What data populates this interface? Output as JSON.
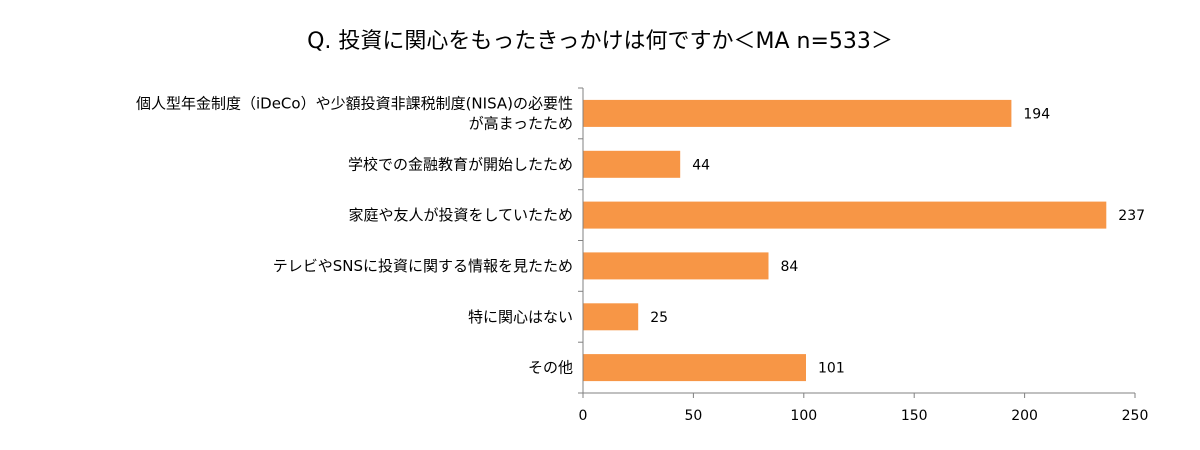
{
  "chart_data": {
    "type": "bar",
    "orientation": "horizontal",
    "title": "Q. 投資に関心をもったきっかけは何ですか＜MA n=533＞",
    "categories": [
      [
        "個人型年金制度（iDeCo）や少額投資非課税制度(NISA)の必要性",
        "が高まったため"
      ],
      [
        "学校での金融教育が開始したため"
      ],
      [
        "家庭や友人が投資をしていたため"
      ],
      [
        "テレビやSNSに投資に関する情報を見たため"
      ],
      [
        "特に関心はない"
      ],
      [
        "その他"
      ]
    ],
    "values": [
      194,
      44,
      237,
      84,
      25,
      101
    ],
    "xlim": [
      0,
      250
    ],
    "ticks": [
      0,
      50,
      100,
      150,
      200,
      250
    ],
    "grid": false,
    "bar_color": "#f79646",
    "axis_color": "#808080"
  }
}
